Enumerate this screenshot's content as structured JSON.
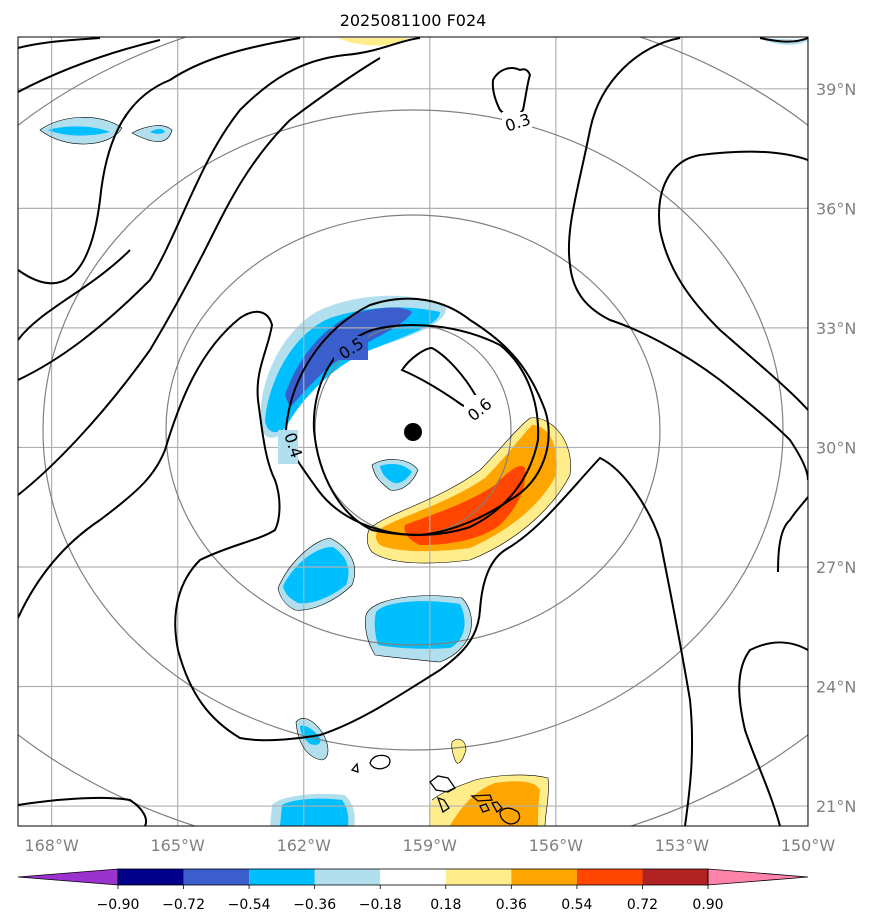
{
  "title": "2025081100 F024",
  "map": {
    "lon_range": [
      -168.8,
      -150.0
    ],
    "lat_range": [
      20.5,
      40.3
    ],
    "lon_ticks": [
      {
        "value": -168,
        "label": "168°W"
      },
      {
        "value": -165,
        "label": "165°W"
      },
      {
        "value": -162,
        "label": "162°W"
      },
      {
        "value": -159,
        "label": "159°W"
      },
      {
        "value": -156,
        "label": "156°W"
      },
      {
        "value": -153,
        "label": "153°W"
      },
      {
        "value": -150,
        "label": "150°W"
      }
    ],
    "lat_ticks": [
      {
        "value": 21,
        "label": "21°N"
      },
      {
        "value": 24,
        "label": "24°N"
      },
      {
        "value": 27,
        "label": "27°N"
      },
      {
        "value": 30,
        "label": "30°N"
      },
      {
        "value": 33,
        "label": "33°N"
      },
      {
        "value": 36,
        "label": "36°N"
      },
      {
        "value": 39,
        "label": "39°N"
      }
    ],
    "grid": true,
    "center": {
      "lon": -158.5,
      "lat": 30.4
    },
    "contour_labels": [
      "0.3",
      "0.4",
      "0.5",
      "0.6"
    ]
  },
  "colorbar": {
    "tick_labels": [
      "−0.90",
      "−0.72",
      "−0.54",
      "−0.36",
      "−0.18",
      "0.18",
      "0.36",
      "0.54",
      "0.72",
      "0.90"
    ],
    "colors": [
      "#9a32cd",
      "#00008b",
      "#3a5fcd",
      "#00bfff",
      "#b2dfee",
      "#ffffff",
      "#ffec8b",
      "#ffa500",
      "#ff4500",
      "#b22222",
      "#ff82ab"
    ]
  }
}
